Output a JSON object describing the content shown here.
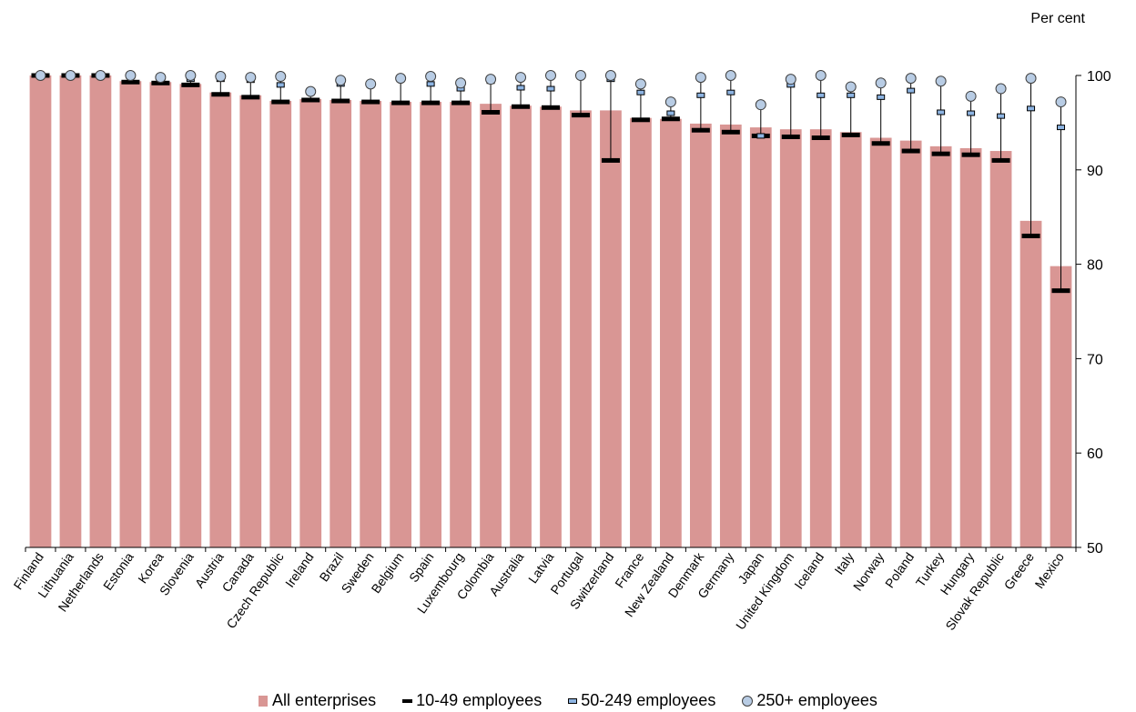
{
  "chart_data": {
    "type": "bar",
    "ylabel": "Per cent",
    "ylim": [
      50,
      100
    ],
    "yticks": [
      50,
      60,
      70,
      80,
      90,
      100
    ],
    "y_axis_side": "right",
    "legend_position": "bottom",
    "categories": [
      "Finland",
      "Lithuania",
      "Netherlands",
      "Estonia",
      "Korea",
      "Slovenia",
      "Austria",
      "Canada",
      "Czech Republic",
      "Ireland",
      "Brazil",
      "Sweden",
      "Belgium",
      "Spain",
      "Luxembourg",
      "Colombia",
      "Australia",
      "Latvia",
      "Portugal",
      "Switzerland",
      "France",
      "New Zealand",
      "Denmark",
      "Germany",
      "Japan",
      "United Kingdom",
      "Iceland",
      "Italy",
      "Norway",
      "Poland",
      "Turkey",
      "Hungary",
      "Slovak Republic",
      "Greece",
      "Mexico"
    ],
    "series": [
      {
        "name": "All enterprises",
        "type": "bar",
        "color": "#d99694",
        "values": [
          100,
          100,
          100,
          99.4,
          99.3,
          99.1,
          98.2,
          97.9,
          97.3,
          97.5,
          97.4,
          97.3,
          97.2,
          97.2,
          97.2,
          97.0,
          96.8,
          96.7,
          96.3,
          96.3,
          95.5,
          95.4,
          94.9,
          94.8,
          94.5,
          94.3,
          94.3,
          94.0,
          93.4,
          93.1,
          92.5,
          92.3,
          92.0,
          84.6,
          79.8
        ]
      },
      {
        "name": "10-49 employees",
        "type": "marker",
        "color": "#000000",
        "values": [
          100,
          100,
          100,
          99.3,
          99.2,
          99.0,
          98.0,
          97.7,
          97.2,
          97.4,
          97.3,
          97.2,
          97.1,
          97.1,
          97.1,
          96.1,
          96.7,
          96.6,
          95.8,
          91.0,
          95.3,
          95.4,
          94.2,
          94.0,
          93.6,
          93.5,
          93.4,
          93.7,
          92.8,
          92.0,
          91.7,
          91.6,
          91.0,
          83.0,
          77.2
        ]
      },
      {
        "name": "50-249 employees",
        "type": "marker",
        "color": "#8db4e2",
        "values": [
          100,
          100,
          100,
          99.9,
          99.9,
          99.6,
          99.6,
          99.5,
          99.0,
          98.2,
          99.1,
          99.0,
          99.6,
          99.1,
          98.6,
          99.4,
          98.7,
          98.6,
          100,
          99.6,
          98.2,
          96.0,
          97.9,
          98.2,
          93.6,
          99.0,
          97.9,
          97.9,
          97.7,
          98.4,
          96.1,
          96.0,
          95.7,
          96.5,
          94.5
        ]
      },
      {
        "name": "250+ employees",
        "type": "marker",
        "color": "#b8cce4",
        "values": [
          100,
          100,
          100,
          100,
          99.8,
          100,
          99.9,
          99.8,
          99.9,
          98.3,
          99.5,
          99.1,
          99.7,
          99.9,
          99.2,
          99.6,
          99.8,
          100,
          100,
          100,
          99.1,
          97.2,
          99.8,
          100,
          96.9,
          99.6,
          100,
          98.8,
          99.2,
          99.7,
          99.4,
          97.8,
          98.6,
          99.7,
          97.2
        ]
      }
    ]
  }
}
